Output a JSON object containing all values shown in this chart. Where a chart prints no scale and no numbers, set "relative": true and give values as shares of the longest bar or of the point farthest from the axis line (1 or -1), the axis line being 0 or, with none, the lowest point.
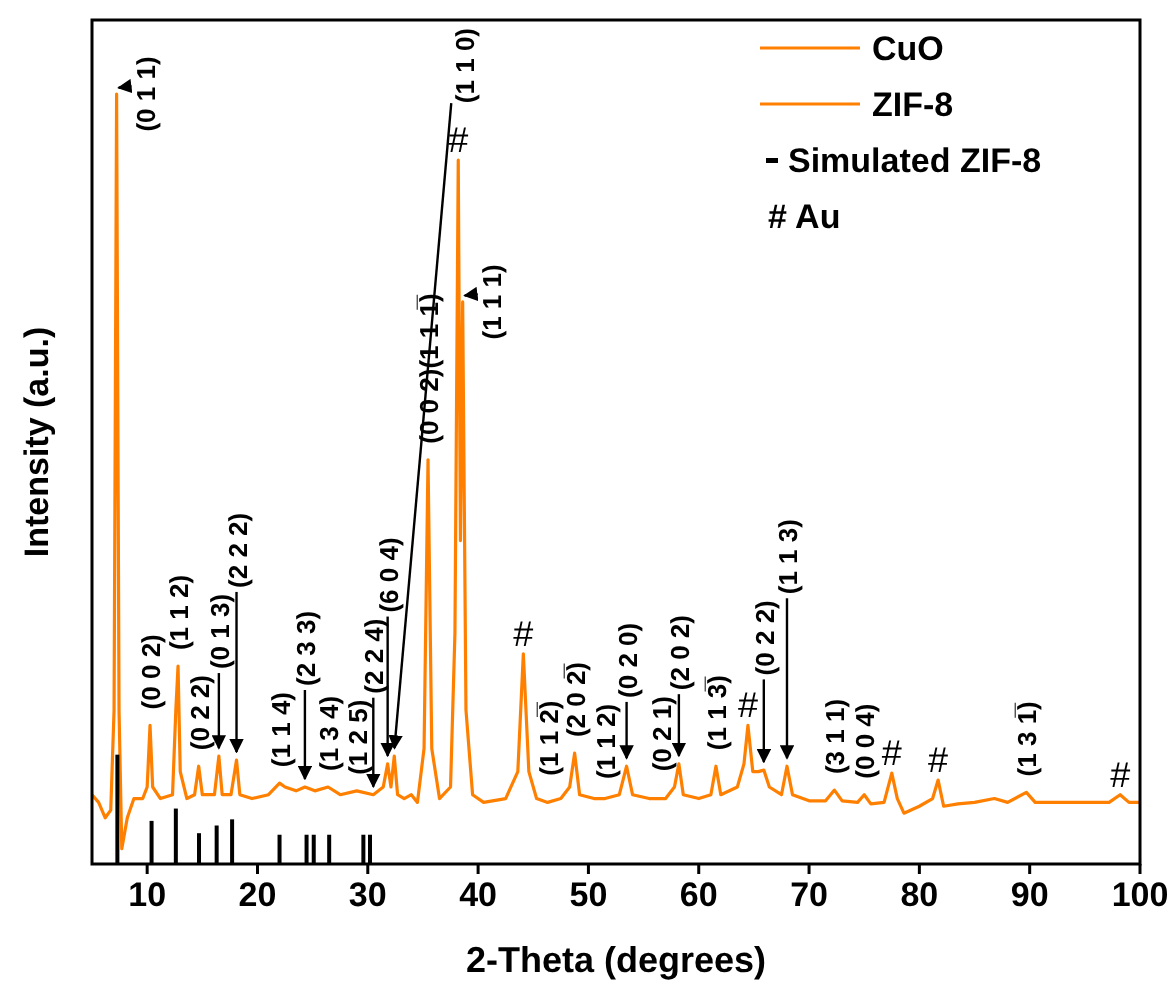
{
  "chart_data": {
    "type": "line",
    "xlabel": "2-Theta (degrees)",
    "ylabel": "Intensity (a.u.)",
    "relative": true,
    "xlim": [
      5,
      100
    ],
    "xticks": [
      10,
      20,
      30,
      40,
      50,
      60,
      70,
      80,
      90,
      100
    ],
    "legend": "top right",
    "series": [
      {
        "color": "#ff8000",
        "x": [
          5,
          5.6,
          6.2,
          6.7,
          7.0,
          7.23,
          7.45,
          7.7,
          8.2,
          8.8,
          9.6,
          10.0,
          10.26,
          10.5,
          11.2,
          12.3,
          12.6,
          12.8,
          13.0,
          13.6,
          14.3,
          14.67,
          15.0,
          16.1,
          16.5,
          16.8,
          17.6,
          18.1,
          18.4,
          19.5,
          21.0,
          22.0,
          22.5,
          23.5,
          24.3,
          25.2,
          26.4,
          27.5,
          29.0,
          30.5,
          31.4,
          31.8,
          32.1,
          32.4,
          32.7,
          33.3,
          33.95,
          34.5,
          35.1,
          35.46,
          35.8,
          36.5,
          37.5,
          37.9,
          38.2,
          38.4,
          38.6,
          38.9,
          39.5,
          40.5,
          42.5,
          43.6,
          44.1,
          44.6,
          45.3,
          46.3,
          47.5,
          48.3,
          48.75,
          49.2,
          50.5,
          51.5,
          52.8,
          53.46,
          54.0,
          55.5,
          57.0,
          57.8,
          58.2,
          58.6,
          60.0,
          61.1,
          61.56,
          62.0,
          63.5,
          64.1,
          64.46,
          64.9,
          65.4,
          65.9,
          66.4,
          67.5,
          68.0,
          68.5,
          70.0,
          71.5,
          72.3,
          73.0,
          74.4,
          75.0,
          75.6,
          76.8,
          77.5,
          78.0,
          78.6,
          80.0,
          81.2,
          81.7,
          82.2,
          83.5,
          85.0,
          86.8,
          88.0,
          89.7,
          90.5,
          92.5,
          95.0,
          97.2,
          98.2,
          99.0,
          100
        ],
        "values": [
          0.09,
          0.08,
          0.06,
          0.07,
          0.2,
          1.0,
          0.2,
          0.02,
          0.06,
          0.085,
          0.085,
          0.1,
          0.18,
          0.1,
          0.085,
          0.09,
          0.2,
          0.257,
          0.12,
          0.085,
          0.09,
          0.127,
          0.09,
          0.09,
          0.14,
          0.09,
          0.09,
          0.135,
          0.09,
          0.085,
          0.09,
          0.105,
          0.1,
          0.095,
          0.1,
          0.095,
          0.1,
          0.09,
          0.095,
          0.09,
          0.1,
          0.13,
          0.1,
          0.14,
          0.09,
          0.085,
          0.09,
          0.08,
          0.15,
          0.525,
          0.15,
          0.085,
          0.1,
          0.3,
          0.914,
          0.42,
          0.73,
          0.2,
          0.09,
          0.08,
          0.085,
          0.12,
          0.273,
          0.12,
          0.085,
          0.08,
          0.085,
          0.1,
          0.144,
          0.09,
          0.085,
          0.085,
          0.09,
          0.127,
          0.09,
          0.085,
          0.085,
          0.1,
          0.13,
          0.09,
          0.085,
          0.09,
          0.127,
          0.09,
          0.1,
          0.13,
          0.18,
          0.12,
          0.12,
          0.122,
          0.1,
          0.09,
          0.127,
          0.09,
          0.082,
          0.082,
          0.096,
          0.082,
          0.08,
          0.09,
          0.078,
          0.08,
          0.118,
          0.085,
          0.066,
          0.075,
          0.085,
          0.109,
          0.075,
          0.078,
          0.08,
          0.085,
          0.08,
          0.093,
          0.08,
          0.08,
          0.08,
          0.08,
          0.09,
          0.08,
          0.08
        ]
      },
      {
        "type": "bar",
        "name": "Simulated ZIF-8",
        "color": "#000000",
        "x": [
          7.3,
          10.4,
          12.6,
          14.7,
          16.3,
          17.7,
          22.0,
          24.45,
          25.1,
          26.5,
          29.6,
          30.2
        ],
        "values": [
          0.142,
          0.056,
          0.072,
          0.04,
          0.05,
          0.058,
          0.038,
          0.038,
          0.038,
          0.038,
          0.038,
          0.038
        ]
      }
    ],
    "annotations": [
      "CuO",
      "ZIF-8",
      {
        "text": "(1 1 0)",
        "x": 32.4,
        "y": 0.14
      },
      {
        "text": "(0 0 2)(1 1 1̅)",
        "x": 35.46,
        "y": 0.525
      },
      {
        "text": "(1 1 1)",
        "x": 38.6,
        "y": 0.73
      },
      {
        "text": "(1 1 2̅)",
        "x": 46.3,
        "y": 0.08
      },
      {
        "text": "(2 0 2̅)",
        "x": 48.75,
        "y": 0.144
      },
      {
        "text": "(1 1 2)",
        "x": 51.5,
        "y": 0.085
      },
      {
        "text": "(0 2 0)",
        "x": 53.46,
        "y": 0.127
      },
      {
        "text": "(0 2 1)",
        "x": 56.6,
        "y": 0.085
      },
      {
        "text": "(2 0 2)",
        "x": 58.2,
        "y": 0.13
      },
      {
        "text": "(1 1 3̅)",
        "x": 61.56,
        "y": 0.127
      },
      {
        "text": "(0 2 2)",
        "x": 65.9,
        "y": 0.122
      },
      {
        "text": "(1 1 3)",
        "x": 68.0,
        "y": 0.127
      },
      {
        "text": "(3 1 1)",
        "x": 72.3,
        "y": 0.096
      },
      {
        "text": "(0 0 4)",
        "x": 75.0,
        "y": 0.09
      },
      {
        "text": "(1 3 1̅)",
        "x": 89.7,
        "y": 0.093
      },
      {
        "text": "(0 1 1)",
        "x": 7.23,
        "y": 1.0
      },
      {
        "text": "(0 0 2)",
        "x": 10.26,
        "y": 0.18
      },
      {
        "text": "(1 1 2)",
        "x": 12.8,
        "y": 0.257
      },
      {
        "text": "(0 2 2)",
        "x": 14.67,
        "y": 0.127
      },
      {
        "text": "(0 1 3)",
        "x": 16.5,
        "y": 0.14
      },
      {
        "text": "(2 2 2)",
        "x": 18.1,
        "y": 0.135
      },
      {
        "text": "(1 1 4)",
        "x": 22.0,
        "y": 0.105
      },
      {
        "text": "(2 3 3)",
        "x": 24.3,
        "y": 0.1
      },
      {
        "text": "(1 3 4)",
        "x": 26.4,
        "y": 0.1
      },
      {
        "text": "(1 2 5)",
        "x": 29.0,
        "y": 0.095
      },
      {
        "text": "(2 2 4)",
        "x": 30.5,
        "y": 0.09
      },
      {
        "text": "(6 0 4)",
        "x": 31.8,
        "y": 0.13
      },
      {
        "text": "#",
        "x": 38.2,
        "y": 0.914
      },
      {
        "text": "#",
        "x": 44.1,
        "y": 0.273
      },
      {
        "text": "#",
        "x": 64.46,
        "y": 0.18
      },
      {
        "text": "#",
        "x": 77.5,
        "y": 0.118
      },
      {
        "text": "#",
        "x": 81.7,
        "y": 0.109
      },
      {
        "text": "#",
        "x": 98.2,
        "y": 0.09
      },
      "# Au"
    ]
  }
}
